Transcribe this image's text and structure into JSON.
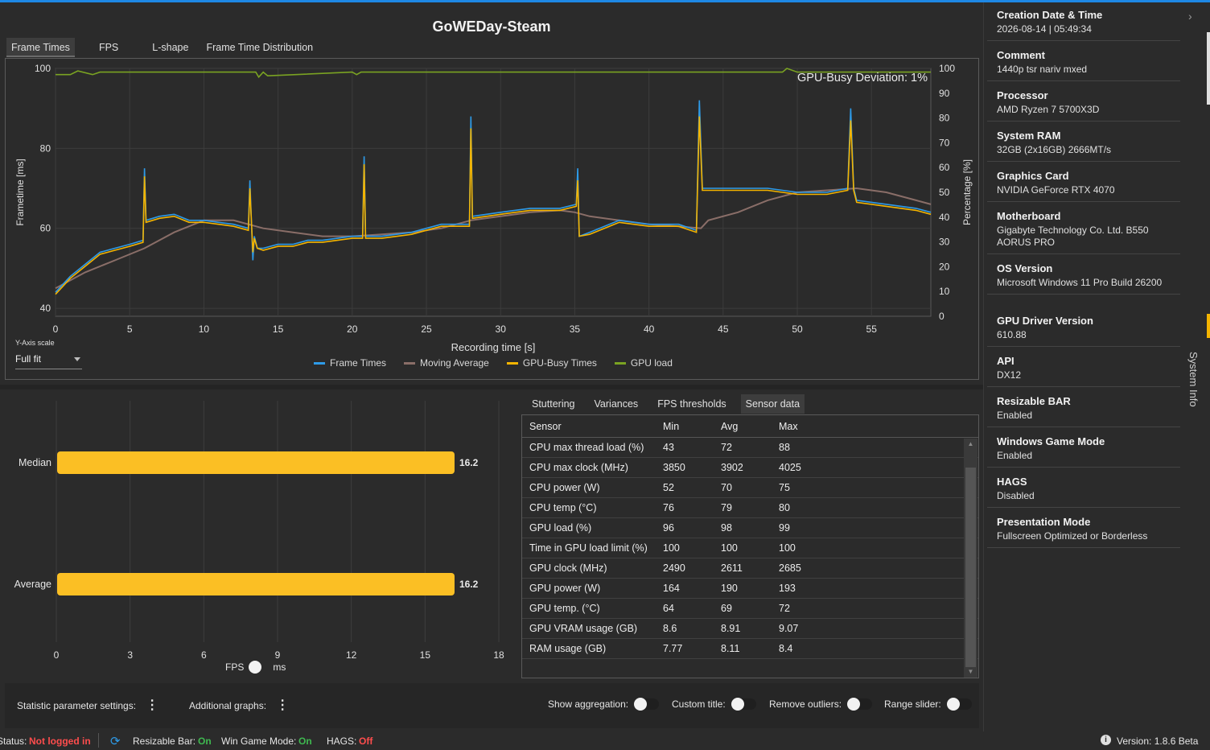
{
  "title": "GoWEDay-Steam",
  "tabs_top": [
    "Frame Times",
    "FPS",
    "L-shape",
    "Frame Time Distribution"
  ],
  "chart_data": {
    "type": "line",
    "xlabel": "Recording time [s]",
    "ylabel": "Frametime [ms]",
    "y2label": "Percentage [%]",
    "xlim": [
      0,
      59
    ],
    "ylim": [
      38,
      100
    ],
    "y2lim": [
      0,
      100
    ],
    "x_ticks": [
      0,
      5,
      10,
      15,
      20,
      25,
      30,
      35,
      40,
      45,
      50,
      55
    ],
    "y_ticks": [
      40,
      60,
      80,
      100
    ],
    "y2_ticks": [
      0,
      10,
      20,
      30,
      40,
      50,
      60,
      70,
      80,
      90,
      100
    ],
    "annotation": "GPU-Busy Deviation: 1%",
    "series": [
      {
        "name": "Frame Times",
        "color": "#2e9be8",
        "x": [
          0,
          1,
          2,
          3,
          4,
          5,
          5.9,
          6.0,
          6.1,
          7,
          8,
          9,
          10,
          11,
          12,
          13,
          13.1,
          13.3,
          13.4,
          13.6,
          14,
          15,
          16,
          17,
          18,
          19,
          20,
          20.7,
          20.8,
          20.9,
          22,
          24,
          26,
          27.9,
          28.0,
          28.1,
          30,
          32,
          34,
          35.1,
          35.2,
          35.3,
          36,
          38,
          40,
          42,
          43.2,
          43.4,
          43.6,
          44,
          46,
          48,
          50,
          52,
          53.4,
          53.6,
          53.8,
          54,
          56,
          58,
          59
        ],
        "y": [
          44,
          48,
          51,
          54,
          55,
          56,
          57,
          75,
          62,
          63,
          63.5,
          62,
          62,
          61.5,
          61,
          60,
          72,
          52,
          58,
          55,
          55,
          56,
          56,
          57,
          57,
          57.5,
          58,
          58,
          78,
          58,
          58,
          59,
          61,
          61,
          88,
          63,
          64,
          65,
          65,
          66,
          75,
          58,
          59,
          62,
          61,
          61,
          59.5,
          92,
          70,
          70,
          70,
          70,
          69,
          69,
          70,
          90,
          70,
          67,
          66,
          65,
          64
        ]
      },
      {
        "name": "Moving Average",
        "color": "#8a6e68",
        "x": [
          0,
          2,
          4,
          6,
          8,
          10,
          12,
          14,
          16,
          18,
          20,
          22,
          24,
          26,
          28,
          30,
          32,
          34,
          35,
          36,
          38,
          40,
          42,
          43.5,
          44,
          46,
          48,
          50,
          52,
          54,
          56,
          58,
          59
        ],
        "y": [
          45,
          49,
          52,
          55,
          59,
          62,
          62,
          60,
          59,
          58,
          58,
          58.5,
          59,
          60,
          62,
          63,
          64,
          64.5,
          64,
          63,
          62,
          61,
          60.5,
          60,
          62,
          64,
          67,
          69,
          69.5,
          70,
          69,
          67,
          66
        ]
      },
      {
        "name": "GPU-Busy Times",
        "color": "#f4b400",
        "x": [
          0,
          1,
          2,
          3,
          4,
          5,
          5.9,
          6.0,
          6.1,
          7,
          8,
          9,
          10,
          11,
          12,
          13,
          13.1,
          13.3,
          13.4,
          13.6,
          14,
          15,
          16,
          17,
          18,
          19,
          20,
          20.7,
          20.8,
          20.9,
          22,
          24,
          26,
          27.9,
          28.0,
          28.1,
          30,
          32,
          34,
          35.1,
          35.2,
          35.3,
          36,
          38,
          40,
          42,
          43.2,
          43.4,
          43.6,
          44,
          46,
          48,
          50,
          52,
          53.4,
          53.6,
          53.8,
          54,
          56,
          58,
          59
        ],
        "y": [
          43.5,
          47.5,
          50.5,
          53.5,
          54.5,
          55.5,
          56.5,
          73,
          61.5,
          62.5,
          63,
          61.5,
          61.5,
          61,
          60.5,
          59.5,
          70,
          54,
          57.5,
          55,
          54.5,
          55.5,
          55.5,
          56.5,
          56.5,
          57,
          57.5,
          57.5,
          76,
          57.5,
          57.5,
          58.5,
          60.5,
          60.5,
          85,
          62.5,
          63.5,
          64.5,
          64.5,
          65.5,
          72,
          58,
          58.5,
          61.5,
          60.5,
          60.5,
          59,
          88,
          69.5,
          69.5,
          69.5,
          69.5,
          68.5,
          68.5,
          69.5,
          87,
          69.5,
          66.5,
          65.5,
          64.5,
          63.5
        ]
      },
      {
        "name": "GPU load",
        "color": "#7aa322",
        "axis": "y2",
        "x": [
          0,
          1,
          1.5,
          2.5,
          3,
          5,
          10,
          13.5,
          13.7,
          14,
          14.3,
          20,
          20.3,
          20.6,
          30,
          40,
          49,
          49.3,
          50,
          59
        ],
        "y": [
          97.5,
          97.5,
          99,
          97.5,
          98.5,
          98.5,
          98.5,
          98.5,
          96.5,
          98.5,
          97,
          98.5,
          97.5,
          98.5,
          98.5,
          98.5,
          98.5,
          100,
          98.5,
          98.5
        ]
      }
    ]
  },
  "yaxis_scale": {
    "label": "Y-Axis scale",
    "value": "Full fit"
  },
  "bars": {
    "type": "bar",
    "categories": [
      "Median",
      "Average"
    ],
    "values": [
      16.2,
      16.2
    ],
    "value_labels": [
      "16.2",
      "16.2"
    ],
    "xlim": [
      0,
      18
    ],
    "x_ticks": [
      "0",
      "3",
      "6",
      "9",
      "12",
      "15",
      "18"
    ],
    "color": "#fbbf24"
  },
  "unit_toggle": {
    "left": "FPS",
    "right": "ms"
  },
  "stat_tabs": [
    "Stuttering",
    "Variances",
    "FPS thresholds",
    "Sensor data"
  ],
  "sensor": {
    "headers": [
      "Sensor",
      "Min",
      "Avg",
      "Max"
    ],
    "rows": [
      [
        "CPU max thread load (%)",
        "43",
        "72",
        "88"
      ],
      [
        "CPU max clock (MHz)",
        "3850",
        "3902",
        "4025"
      ],
      [
        "CPU power (W)",
        "52",
        "70",
        "75"
      ],
      [
        "CPU temp (°C)",
        "76",
        "79",
        "80"
      ],
      [
        "GPU load (%)",
        "96",
        "98",
        "99"
      ],
      [
        "Time in GPU load limit (%)",
        "100",
        "100",
        "100"
      ],
      [
        "GPU clock (MHz)",
        "2490",
        "2611",
        "2685"
      ],
      [
        "GPU power (W)",
        "164",
        "190",
        "193"
      ],
      [
        "GPU temp. (°C)",
        "64",
        "69",
        "72"
      ],
      [
        "GPU VRAM usage (GB)",
        "8.6",
        "8.91",
        "9.07"
      ],
      [
        "RAM usage (GB)",
        "7.77",
        "8.11",
        "8.4"
      ]
    ]
  },
  "bottom": {
    "stat_settings": "Statistic parameter settings:",
    "additional_graphs": "Additional graphs:",
    "show_aggregation": "Show aggregation:",
    "custom_title": "Custom title:",
    "remove_outliers": "Remove outliers:",
    "range_slider": "Range slider:"
  },
  "status": {
    "status_label": "Status:",
    "status_value": "Not logged in",
    "resizable_bar_label": "Resizable Bar:",
    "resizable_bar_value": "On",
    "game_mode_label": "Win Game Mode:",
    "game_mode_value": "On",
    "hags_label": "HAGS:",
    "hags_value": "Off",
    "version": "Version:  1.8.6 Beta",
    "on_color": "#3fb950",
    "off_color": "#ff4d4d"
  },
  "sidebar": {
    "vertical_label": "System Info",
    "items": [
      {
        "label": "Creation Date & Time",
        "value": "2026-08-14  |  05:49:34"
      },
      {
        "label": "Comment",
        "value": "1440p tsr nariv mxed"
      },
      {
        "label": "Processor",
        "value": "AMD Ryzen 7 5700X3D"
      },
      {
        "label": "System RAM",
        "value": "32GB (2x16GB) 2666MT/s"
      },
      {
        "label": "Graphics Card",
        "value": "NVIDIA GeForce RTX 4070"
      },
      {
        "label": "Motherboard",
        "value": "Gigabyte Technology Co. Ltd. B550 AORUS PRO"
      },
      {
        "label": "OS Version",
        "value": "Microsoft Windows 11 Pro Build 26200"
      },
      {
        "label": "GPU Driver Version",
        "value": "610.88"
      },
      {
        "label": "API",
        "value": "DX12"
      },
      {
        "label": "Resizable BAR",
        "value": "Enabled"
      },
      {
        "label": "Windows Game Mode",
        "value": "Enabled"
      },
      {
        "label": "HAGS",
        "value": "Disabled"
      },
      {
        "label": "Presentation Mode",
        "value": "Fullscreen Optimized or Borderless"
      }
    ]
  }
}
